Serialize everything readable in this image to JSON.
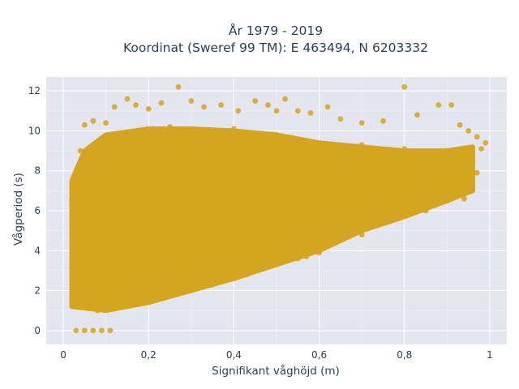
{
  "chart_data": {
    "type": "scatter",
    "title": "År 1979 - 2019",
    "subtitle": "Koordinat (Sweref 99 TM): E 463494, N 6203332",
    "xlabel": "Signifikant våghöjd (m)",
    "ylabel": "Vågperiod (s)",
    "xlim": [
      -0.04,
      1.04
    ],
    "ylim": [
      -0.7,
      12.7
    ],
    "xticks": [
      0,
      0.2,
      0.4,
      0.6,
      0.8,
      1
    ],
    "xtick_labels": [
      "0",
      "0,2",
      "0,4",
      "0,6",
      "0,8",
      "1"
    ],
    "yticks": [
      0,
      2,
      4,
      6,
      8,
      10,
      12
    ],
    "ytick_labels": [
      "0",
      "2",
      "4",
      "6",
      "8",
      "10",
      "12"
    ],
    "grid": true,
    "marker_color": "#d4a520",
    "plot_background": "#e5e5f0",
    "series": [
      {
        "values": [
          [
            0.03,
            0.0
          ],
          [
            0.05,
            0.0
          ],
          [
            0.07,
            0.0
          ],
          [
            0.09,
            0.0
          ],
          [
            0.11,
            0.0
          ],
          [
            0.02,
            1.5
          ],
          [
            0.02,
            3.1
          ],
          [
            0.02,
            6.5
          ],
          [
            0.03,
            8.0
          ],
          [
            0.04,
            9.0
          ],
          [
            0.05,
            10.3
          ],
          [
            0.07,
            10.5
          ],
          [
            0.1,
            10.4
          ],
          [
            0.12,
            11.2
          ],
          [
            0.15,
            11.6
          ],
          [
            0.17,
            11.3
          ],
          [
            0.2,
            11.1
          ],
          [
            0.23,
            11.4
          ],
          [
            0.27,
            12.2
          ],
          [
            0.3,
            11.5
          ],
          [
            0.33,
            11.2
          ],
          [
            0.37,
            11.3
          ],
          [
            0.41,
            11.0
          ],
          [
            0.45,
            11.5
          ],
          [
            0.48,
            11.3
          ],
          [
            0.5,
            11.0
          ],
          [
            0.52,
            11.6
          ],
          [
            0.55,
            11.0
          ],
          [
            0.58,
            10.9
          ],
          [
            0.62,
            11.2
          ],
          [
            0.65,
            10.6
          ],
          [
            0.7,
            10.4
          ],
          [
            0.75,
            10.5
          ],
          [
            0.8,
            12.2
          ],
          [
            0.83,
            10.8
          ],
          [
            0.88,
            11.3
          ],
          [
            0.91,
            11.3
          ],
          [
            0.93,
            10.3
          ],
          [
            0.95,
            10.0
          ],
          [
            0.97,
            9.7
          ],
          [
            0.99,
            9.4
          ],
          [
            0.98,
            9.1
          ],
          [
            0.96,
            8.5
          ],
          [
            0.97,
            7.9
          ],
          [
            0.95,
            7.2
          ],
          [
            0.94,
            6.6
          ],
          [
            0.92,
            7.5
          ],
          [
            0.9,
            6.5
          ],
          [
            0.87,
            6.7
          ],
          [
            0.85,
            6.0
          ],
          [
            0.82,
            6.1
          ],
          [
            0.8,
            5.8
          ],
          [
            0.77,
            5.5
          ],
          [
            0.75,
            5.6
          ],
          [
            0.72,
            5.8
          ],
          [
            0.7,
            4.8
          ],
          [
            0.67,
            4.7
          ],
          [
            0.65,
            5.1
          ],
          [
            0.63,
            4.6
          ],
          [
            0.6,
            3.9
          ],
          [
            0.57,
            3.7
          ],
          [
            0.55,
            3.6
          ],
          [
            0.52,
            3.5
          ],
          [
            0.5,
            3.3
          ],
          [
            0.47,
            3.1
          ],
          [
            0.45,
            3.0
          ],
          [
            0.43,
            2.8
          ],
          [
            0.4,
            2.6
          ],
          [
            0.37,
            2.5
          ],
          [
            0.35,
            2.3
          ],
          [
            0.32,
            2.2
          ],
          [
            0.3,
            2.0
          ],
          [
            0.27,
            1.9
          ],
          [
            0.25,
            1.8
          ],
          [
            0.22,
            1.6
          ],
          [
            0.2,
            1.5
          ],
          [
            0.17,
            1.4
          ],
          [
            0.15,
            1.3
          ],
          [
            0.12,
            1.2
          ],
          [
            0.1,
            1.1
          ],
          [
            0.08,
            1.0
          ],
          [
            0.06,
            1.1
          ],
          [
            0.04,
            1.2
          ],
          [
            0.03,
            2.0
          ],
          [
            0.04,
            4.0
          ],
          [
            0.05,
            6.0
          ],
          [
            0.06,
            7.8
          ],
          [
            0.08,
            8.5
          ],
          [
            0.1,
            9.2
          ],
          [
            0.12,
            9.5
          ],
          [
            0.15,
            9.8
          ],
          [
            0.18,
            10.0
          ],
          [
            0.21,
            10.1
          ],
          [
            0.25,
            10.2
          ],
          [
            0.3,
            10.0
          ],
          [
            0.35,
            9.9
          ],
          [
            0.4,
            10.1
          ],
          [
            0.45,
            9.6
          ],
          [
            0.5,
            9.8
          ],
          [
            0.55,
            9.5
          ],
          [
            0.6,
            9.4
          ],
          [
            0.65,
            9.2
          ],
          [
            0.7,
            9.3
          ],
          [
            0.75,
            9.0
          ],
          [
            0.8,
            9.1
          ],
          [
            0.85,
            8.8
          ],
          [
            0.9,
            9.0
          ],
          [
            0.1,
            5.0
          ],
          [
            0.2,
            6.0
          ],
          [
            0.3,
            6.5
          ],
          [
            0.4,
            7.0
          ],
          [
            0.5,
            7.0
          ],
          [
            0.6,
            7.2
          ],
          [
            0.7,
            7.3
          ],
          [
            0.8,
            7.5
          ],
          [
            0.9,
            7.8
          ],
          [
            0.15,
            3.5
          ],
          [
            0.25,
            4.0
          ],
          [
            0.35,
            5.0
          ],
          [
            0.45,
            5.5
          ],
          [
            0.55,
            6.0
          ],
          [
            0.65,
            6.3
          ],
          [
            0.75,
            6.8
          ],
          [
            0.85,
            7.2
          ],
          [
            0.12,
            7.0
          ],
          [
            0.22,
            8.0
          ],
          [
            0.32,
            8.2
          ],
          [
            0.42,
            8.3
          ],
          [
            0.52,
            8.5
          ],
          [
            0.62,
            8.6
          ],
          [
            0.72,
            8.4
          ],
          [
            0.82,
            8.2
          ],
          [
            0.92,
            8.4
          ]
        ]
      }
    ]
  }
}
